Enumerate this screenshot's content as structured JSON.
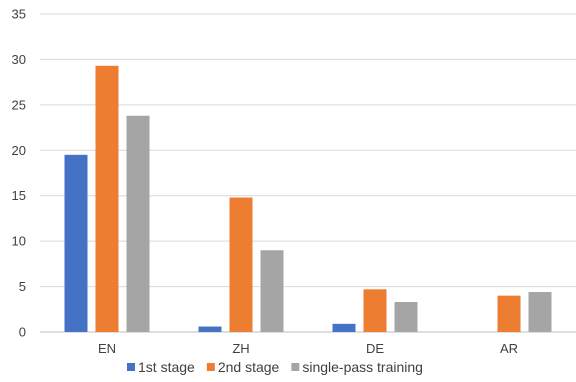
{
  "chart_data": {
    "type": "bar",
    "categories": [
      "EN",
      "ZH",
      "DE",
      "AR"
    ],
    "series": [
      {
        "name": "1st stage",
        "color": "#4472C4",
        "values": [
          19.5,
          0.6,
          0.9,
          0
        ]
      },
      {
        "name": "2nd stage",
        "color": "#ED7D31",
        "values": [
          29.3,
          14.8,
          4.7,
          4.0
        ]
      },
      {
        "name": "single-pass training",
        "color": "#A5A5A5",
        "values": [
          23.8,
          9.0,
          3.3,
          4.4
        ]
      }
    ],
    "ylim": [
      0,
      35
    ],
    "yticks": [
      0,
      5,
      10,
      15,
      20,
      25,
      30,
      35
    ],
    "grid": true,
    "legend_position": "bottom"
  }
}
